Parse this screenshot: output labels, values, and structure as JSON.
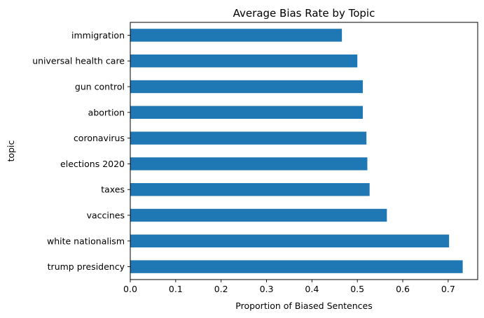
{
  "chart_data": {
    "type": "bar",
    "orientation": "horizontal",
    "title": "Average Bias Rate by Topic",
    "xlabel": "Proportion of Biased Sentences",
    "ylabel": "topic",
    "categories": [
      "trump presidency",
      "white nationalism",
      "vaccines",
      "taxes",
      "elections 2020",
      "coronavirus",
      "abortion",
      "gun control",
      "universal health care",
      "immigration"
    ],
    "values": [
      0.732,
      0.702,
      0.565,
      0.527,
      0.522,
      0.52,
      0.512,
      0.512,
      0.5,
      0.466
    ],
    "xlim": [
      0,
      0.765
    ],
    "xticks": [
      "0.0",
      "0.1",
      "0.2",
      "0.3",
      "0.4",
      "0.5",
      "0.6",
      "0.7"
    ],
    "xtick_values": [
      0,
      0.1,
      0.2,
      0.3,
      0.4,
      0.5,
      0.6,
      0.7
    ],
    "bar_color": "#1f77b4",
    "grid": false,
    "legend": false
  }
}
